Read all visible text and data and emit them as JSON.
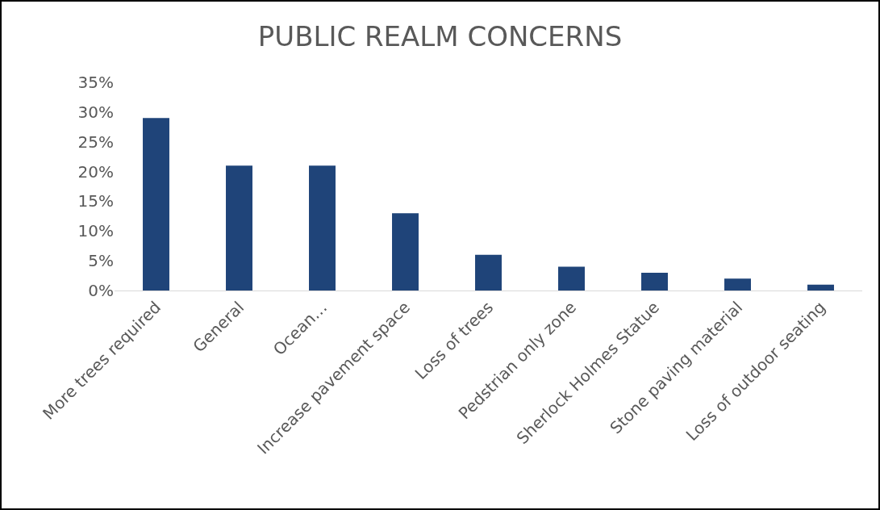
{
  "chart_data": {
    "type": "bar",
    "title": "PUBLIC REALM CONCERNS",
    "categories": [
      "More trees required",
      "General",
      "Ocean…",
      "Increase pavement space",
      "Loss of trees",
      "Pedstrian only zone",
      "Sherlock Holmes Statue",
      "Stone paving material",
      "Loss of outdoor seating"
    ],
    "values": [
      29,
      21,
      21,
      13,
      6,
      4,
      3,
      2,
      1
    ],
    "color": "#1f4479",
    "ylim": [
      0,
      35
    ],
    "yticks": [
      {
        "value": 0,
        "label": "0%"
      },
      {
        "value": 5,
        "label": "5%"
      },
      {
        "value": 10,
        "label": "10%"
      },
      {
        "value": 15,
        "label": "15%"
      },
      {
        "value": 20,
        "label": "20%"
      },
      {
        "value": 25,
        "label": "25%"
      },
      {
        "value": 30,
        "label": "30%"
      },
      {
        "value": 35,
        "label": "35%"
      }
    ],
    "grid": false,
    "legend": false
  }
}
